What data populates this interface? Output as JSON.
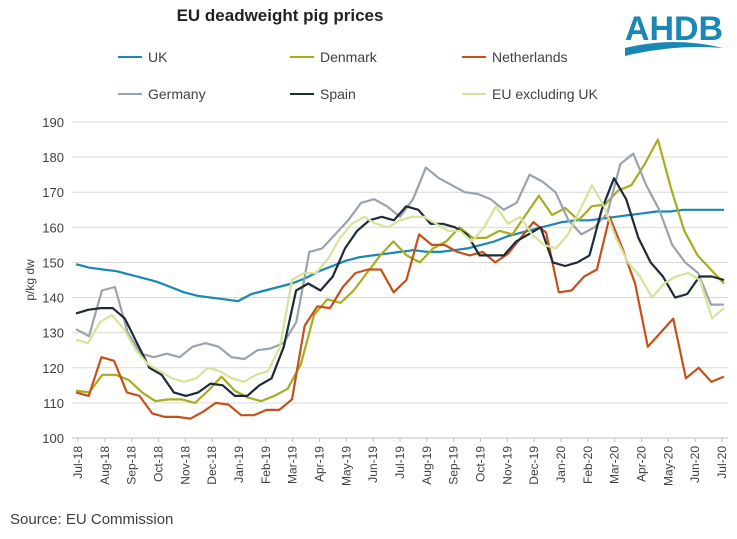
{
  "title": "EU deadweight pig prices",
  "source": "Source: EU Commission",
  "logo": {
    "text": "AHDB",
    "color": "#1a87b4"
  },
  "chart_data": {
    "type": "line",
    "title": "EU deadweight pig prices",
    "ylabel": "p/kg dw",
    "xlabel": "",
    "ylim": [
      100,
      190
    ],
    "yticks": [
      100,
      110,
      120,
      130,
      140,
      150,
      160,
      170,
      180,
      190
    ],
    "grid": true,
    "legend_position": "top",
    "x_tick_labels": [
      "Jul-18",
      "Aug-18",
      "Sep-18",
      "Oct-18",
      "Nov-18",
      "Dec-18",
      "Jan-19",
      "Feb-19",
      "Mar-19",
      "Apr-19",
      "May-19",
      "Jun-19",
      "Jul-19",
      "Aug-19",
      "Sep-19",
      "Oct-19",
      "Nov-19",
      "Dec-19",
      "Jan-20",
      "Feb-20",
      "Mar-20",
      "Apr-20",
      "May-20",
      "Jun-20",
      "Jul-20"
    ],
    "series": [
      {
        "name": "UK",
        "color": "#1a87b4",
        "values": [
          149.5,
          148.5,
          148,
          147.5,
          146.5,
          145.5,
          144.5,
          143,
          141.5,
          140.5,
          140,
          139.5,
          139,
          141,
          142,
          143,
          144,
          145.5,
          147.5,
          149,
          150.5,
          151.5,
          152,
          152.5,
          153,
          153.5,
          153,
          153,
          153.5,
          154,
          155,
          156,
          157.5,
          158.5,
          159.5,
          160.5,
          161.5,
          162,
          162,
          162.5,
          163,
          163.5,
          164,
          164.5,
          164.5,
          165,
          165,
          165,
          165
        ]
      },
      {
        "name": "Denmark",
        "color": "#a7ad1e",
        "values": [
          113.5,
          113,
          118,
          118,
          116.5,
          113,
          110.5,
          111,
          111,
          110,
          113.5,
          117.5,
          113.5,
          111.5,
          110.5,
          112,
          114,
          121,
          135,
          139.5,
          138.5,
          142,
          147,
          152,
          156,
          152,
          150,
          154,
          156,
          160,
          157,
          157,
          159,
          158,
          163.5,
          169,
          163.5,
          165.5,
          162,
          166,
          166.5,
          170.5,
          172,
          178,
          185,
          171,
          159,
          152,
          148,
          144
        ]
      },
      {
        "name": "Netherlands",
        "color": "#c4501a",
        "values": [
          113,
          112,
          123,
          122,
          113,
          112,
          107,
          106,
          106,
          105.5,
          107.5,
          110,
          109.5,
          106.5,
          106.5,
          108,
          108,
          111,
          132,
          137.5,
          137,
          143,
          147,
          148,
          148,
          141.5,
          145,
          158,
          155,
          155,
          153,
          152,
          153,
          150,
          152.5,
          157,
          161.5,
          158.5,
          141.5,
          142,
          146,
          148,
          163,
          154,
          144,
          126,
          130,
          134,
          117,
          120,
          116,
          117.5
        ]
      },
      {
        "name": "Germany",
        "color": "#9aa3ac",
        "values": [
          131,
          129,
          142,
          143,
          130,
          124,
          123,
          124,
          123,
          126,
          127,
          126,
          123,
          122.5,
          125,
          125.5,
          127,
          133,
          153,
          154,
          158,
          162,
          167,
          168,
          166,
          163,
          168,
          177,
          174,
          172,
          170,
          169.5,
          168,
          165,
          167,
          175,
          173,
          170,
          162,
          158,
          160,
          164,
          178,
          181,
          172,
          165,
          155,
          150,
          147,
          138,
          138
        ]
      },
      {
        "name": "Spain",
        "color": "#1d2a38",
        "values": [
          135.5,
          136.5,
          137,
          137,
          134,
          127,
          120,
          118,
          113,
          112,
          113,
          115.5,
          115,
          112,
          112,
          115,
          117,
          126,
          142,
          144,
          142,
          146,
          154,
          159,
          162,
          163,
          162,
          166,
          165,
          161,
          161,
          160,
          158,
          152,
          152,
          152,
          156,
          158,
          160,
          150,
          149,
          150,
          152,
          165,
          174,
          168,
          157,
          150,
          146,
          140,
          141,
          146,
          146,
          145
        ]
      },
      {
        "name": "EU excluding UK",
        "color": "#d5e39b",
        "values": [
          128,
          127,
          133,
          135,
          131,
          125,
          121,
          119,
          117,
          116,
          117,
          120,
          119,
          117,
          116,
          118,
          119,
          126,
          145,
          147,
          147,
          151,
          157,
          161,
          163,
          161,
          160,
          162,
          163,
          163,
          161,
          159,
          159,
          156,
          160,
          166,
          161,
          163,
          158,
          155,
          154,
          158,
          165,
          172,
          166,
          157,
          150,
          146,
          140,
          144,
          146,
          147,
          145,
          134,
          137
        ]
      }
    ]
  }
}
